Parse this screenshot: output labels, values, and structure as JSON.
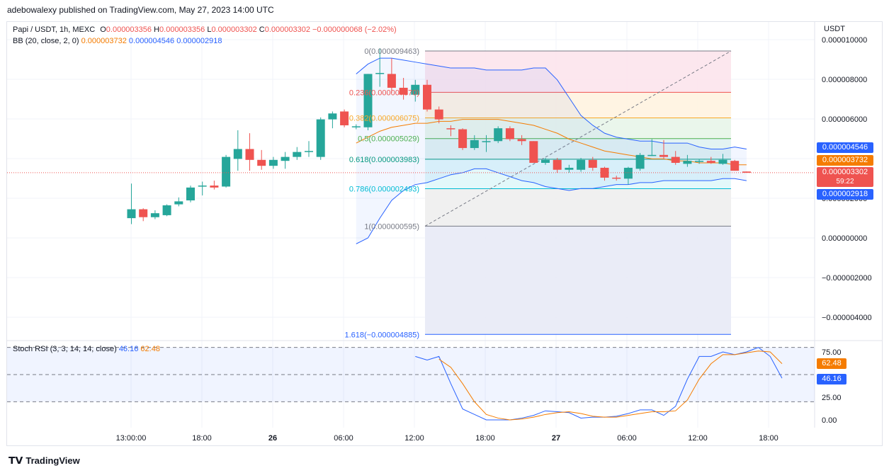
{
  "credit": "adebowalexy published on TradingView.com, May 27, 2023 14:00 UTC",
  "legend": {
    "symbol": "Papi / USDT, 1h, MEXC",
    "o_label": "O",
    "o": "0.000003356",
    "h_label": "H",
    "h": "0.000003356",
    "l_label": "L",
    "l": "0.000003302",
    "c_label": "C",
    "c": "0.000003302",
    "change": "−0.000000068 (−2.02%)",
    "bb_label": "BB (20, close, 2, 0)",
    "bb_basis": "0.000003732",
    "bb_upper": "0.000004546",
    "bb_lower": "0.000002918",
    "stoch_label": "Stoch RSI (3, 3, 14, 14, close)",
    "stoch_k": "46.16",
    "stoch_d": "62.48"
  },
  "price_tags": {
    "upper": "0.000004546",
    "basis": "0.000003732",
    "last": "0.000003302",
    "countdown": "59:22",
    "lower": "0.000002918",
    "stoch_d": "62.48",
    "stoch_k": "46.16"
  },
  "colors": {
    "up": "#26a69a",
    "down": "#ef5350",
    "bb_band": "#2962ff",
    "bb_basis": "#f57c00"
  },
  "footer": {
    "brand": "TradingView"
  },
  "chart_data": [
    {
      "type": "candlestick",
      "title": "Papi / USDT, 1h, MEXC",
      "currency_label": "USDT",
      "x_tick_labels": [
        "13:00:00",
        "18:00",
        "26",
        "06:00",
        "12:00",
        "18:00",
        "27",
        "06:00",
        "12:00",
        "18:00"
      ],
      "y_tick_labels": [
        "0.000010000",
        "0.000008000",
        "0.000006000",
        "0.000004000",
        "0.000002000",
        "0.000000000",
        "−0.000002000",
        "−0.000004000"
      ],
      "ylim": [
        -4.8e-06,
        1e-05
      ],
      "candles": [
        {
          "o": 1e-06,
          "h": 2.75e-06,
          "l": 7e-07,
          "c": 1.45e-06
        },
        {
          "o": 1.45e-06,
          "h": 1.5e-06,
          "l": 8.5e-07,
          "c": 1.05e-06
        },
        {
          "o": 1.05e-06,
          "h": 1.4e-06,
          "l": 9.5e-07,
          "c": 1.25e-06
        },
        {
          "o": 1.15e-06,
          "h": 1.7e-06,
          "l": 1.1e-06,
          "c": 1.65e-06
        },
        {
          "o": 1.7e-06,
          "h": 2.05e-06,
          "l": 1.6e-06,
          "c": 1.85e-06
        },
        {
          "o": 1.9e-06,
          "h": 2.65e-06,
          "l": 1.8e-06,
          "c": 2.55e-06
        },
        {
          "o": 2.6e-06,
          "h": 2.85e-06,
          "l": 2.15e-06,
          "c": 2.65e-06
        },
        {
          "o": 2.65e-06,
          "h": 2.9e-06,
          "l": 2.45e-06,
          "c": 2.55e-06
        },
        {
          "o": 2.6e-06,
          "h": 4.2e-06,
          "l": 2.55e-06,
          "c": 4.1e-06
        },
        {
          "o": 4e-06,
          "h": 5.45e-06,
          "l": 3.4e-06,
          "c": 4.5e-06
        },
        {
          "o": 4.5e-06,
          "h": 5.3e-06,
          "l": 3.4e-06,
          "c": 3.95e-06
        },
        {
          "o": 3.95e-06,
          "h": 4.45e-06,
          "l": 3.45e-06,
          "c": 3.65e-06
        },
        {
          "o": 3.65e-06,
          "h": 4.1e-06,
          "l": 3.5e-06,
          "c": 3.95e-06
        },
        {
          "o": 3.9e-06,
          "h": 4.35e-06,
          "l": 3.5e-06,
          "c": 4.1e-06
        },
        {
          "o": 4.1e-06,
          "h": 4.6e-06,
          "l": 3.95e-06,
          "c": 4.35e-06
        },
        {
          "o": 4.35e-06,
          "h": 4.9e-06,
          "l": 4.1e-06,
          "c": 4.4e-06
        },
        {
          "o": 4.1e-06,
          "h": 6.1e-06,
          "l": 3.95e-06,
          "c": 6e-06
        },
        {
          "o": 6e-06,
          "h": 6.4e-06,
          "l": 5.55e-06,
          "c": 6.3e-06
        },
        {
          "o": 6.4e-06,
          "h": 6.5e-06,
          "l": 5.6e-06,
          "c": 5.7e-06
        },
        {
          "o": 5.65e-06,
          "h": 5.75e-06,
          "l": 5.5e-06,
          "c": 5.65e-06
        },
        {
          "o": 5.6e-06,
          "h": 8.3e-06,
          "l": 5.45e-06,
          "c": 8.3e-06
        },
        {
          "o": 8.3e-06,
          "h": 9.6e-06,
          "l": 7.65e-06,
          "c": 8.35e-06
        },
        {
          "o": 8.3e-06,
          "h": 9.1e-06,
          "l": 7.35e-06,
          "c": 7.6e-06
        },
        {
          "o": 7.6e-06,
          "h": 8.1e-06,
          "l": 7e-06,
          "c": 7.25e-06
        },
        {
          "o": 7.25e-06,
          "h": 8e-06,
          "l": 6.9e-06,
          "c": 7.75e-06
        },
        {
          "o": 7.75e-06,
          "h": 8e-06,
          "l": 6.4e-06,
          "c": 6.5e-06
        },
        {
          "o": 6.5e-06,
          "h": 6.65e-06,
          "l": 5.8e-06,
          "c": 6e-06
        },
        {
          "o": 5.55e-06,
          "h": 5.7e-06,
          "l": 5.15e-06,
          "c": 5.5e-06
        },
        {
          "o": 5.5e-06,
          "h": 5.55e-06,
          "l": 4.45e-06,
          "c": 4.55e-06
        },
        {
          "o": 4.55e-06,
          "h": 5.2e-06,
          "l": 4.45e-06,
          "c": 4.95e-06
        },
        {
          "o": 4.9e-06,
          "h": 5.2e-06,
          "l": 4.35e-06,
          "c": 4.9e-06
        },
        {
          "o": 4.9e-06,
          "h": 5.65e-06,
          "l": 4.8e-06,
          "c": 5.55e-06
        },
        {
          "o": 5.55e-06,
          "h": 5.65e-06,
          "l": 4.9e-06,
          "c": 5e-06
        },
        {
          "o": 5e-06,
          "h": 5.2e-06,
          "l": 4.7e-06,
          "c": 4.9e-06
        },
        {
          "o": 4.9e-06,
          "h": 4.9e-06,
          "l": 3.8e-06,
          "c": 3.8e-06
        },
        {
          "o": 3.8e-06,
          "h": 4.05e-06,
          "l": 3.7e-06,
          "c": 3.95e-06
        },
        {
          "o": 3.95e-06,
          "h": 4.05e-06,
          "l": 3.3e-06,
          "c": 3.45e-06
        },
        {
          "o": 3.45e-06,
          "h": 3.7e-06,
          "l": 3.3e-06,
          "c": 3.55e-06
        },
        {
          "o": 3.45e-06,
          "h": 4.05e-06,
          "l": 3.35e-06,
          "c": 3.95e-06
        },
        {
          "o": 3.95e-06,
          "h": 4.1e-06,
          "l": 3.4e-06,
          "c": 3.55e-06
        },
        {
          "o": 3.55e-06,
          "h": 3.6e-06,
          "l": 2.9e-06,
          "c": 3.05e-06
        },
        {
          "o": 3.05e-06,
          "h": 3.15e-06,
          "l": 2.9e-06,
          "c": 3e-06
        },
        {
          "o": 3e-06,
          "h": 3.6e-06,
          "l": 2.7e-06,
          "c": 3.55e-06
        },
        {
          "o": 3.5e-06,
          "h": 4.3e-06,
          "l": 3.4e-06,
          "c": 4.2e-06
        },
        {
          "o": 4.2e-06,
          "h": 5e-06,
          "l": 4.15e-06,
          "c": 4.2e-06
        },
        {
          "o": 4.2e-06,
          "h": 4.95e-06,
          "l": 4e-06,
          "c": 4.1e-06
        },
        {
          "o": 4.1e-06,
          "h": 4.4e-06,
          "l": 3.7e-06,
          "c": 3.8e-06
        },
        {
          "o": 3.75e-06,
          "h": 4.2e-06,
          "l": 3.6e-06,
          "c": 3.9e-06
        },
        {
          "o": 3.85e-06,
          "h": 4e-06,
          "l": 3.75e-06,
          "c": 3.9e-06
        },
        {
          "o": 3.9e-06,
          "h": 4.1e-06,
          "l": 3.75e-06,
          "c": 3.8e-06
        },
        {
          "o": 3.75e-06,
          "h": 4.25e-06,
          "l": 3.7e-06,
          "c": 3.95e-06
        },
        {
          "o": 3.9e-06,
          "h": 3.95e-06,
          "l": 3.4e-06,
          "c": 3.4e-06
        },
        {
          "o": 3.36e-06,
          "h": 3.36e-06,
          "l": 3.3e-06,
          "c": 3.3e-06
        }
      ],
      "bollinger": {
        "x_start_index": 19,
        "upper": [
          8.3e-06,
          8.8e-06,
          9.1e-06,
          9.1e-06,
          9e-06,
          8.9e-06,
          8.8e-06,
          8.7e-06,
          8.6e-06,
          8.6e-06,
          8.6e-06,
          8.5e-06,
          8.5e-06,
          8.5e-06,
          8.5e-06,
          8.6e-06,
          8.6e-06,
          8e-06,
          7.1e-06,
          6.2e-06,
          5.7e-06,
          5.3e-06,
          5.1e-06,
          5e-06,
          4.9e-06,
          4.9e-06,
          4.8e-06,
          4.8e-06,
          4.8e-06,
          4.6e-06,
          4.5e-06,
          4.5e-06,
          4.6e-06,
          4.5e-06
        ],
        "basis": [
          4.8e-06,
          5.1e-06,
          5.4e-06,
          5.6e-06,
          5.7e-06,
          5.8e-06,
          5.8e-06,
          5.9e-06,
          5.9e-06,
          6e-06,
          6e-06,
          6e-06,
          6e-06,
          5.9e-06,
          5.8e-06,
          5.7e-06,
          5.5e-06,
          5.3e-06,
          5e-06,
          4.8e-06,
          4.6e-06,
          4.4e-06,
          4.3e-06,
          4.2e-06,
          4.1e-06,
          4e-06,
          4e-06,
          3.9e-06,
          3.9e-06,
          3.8e-06,
          3.8e-06,
          3.8e-06,
          3.7e-06,
          3.7e-06
        ],
        "lower": [
          -3e-07,
          0.0,
          1e-06,
          1.9e-06,
          2.4e-06,
          2.7e-06,
          2.8e-06,
          3e-06,
          3.2e-06,
          3.3e-06,
          3.5e-06,
          3.5e-06,
          3.3e-06,
          3.1e-06,
          2.9e-06,
          2.8e-06,
          2.6e-06,
          2.5e-06,
          2.4e-06,
          2.5e-06,
          2.5e-06,
          2.6e-06,
          2.7e-06,
          2.7e-06,
          2.8e-06,
          2.8e-06,
          2.9e-06,
          2.9e-06,
          2.9e-06,
          2.9e-06,
          2.9e-06,
          3e-06,
          3e-06,
          2.9e-06
        ]
      },
      "fibonacci": {
        "start_index": 26,
        "end_index": 51,
        "levels": [
          {
            "ratio": "0",
            "value": 9.463e-06,
            "label": "0(0.000009463)",
            "color": "#787b86",
            "fill": "#fce4ec"
          },
          {
            "ratio": "0.236",
            "value": 7.37e-06,
            "label": "0.236(0.000007370)",
            "color": "#ef5350",
            "fill": "#fff3e0"
          },
          {
            "ratio": "0.382",
            "value": 6.075e-06,
            "label": "0.382(0.000006075)",
            "color": "#f9a825",
            "fill": "#e8f5e9"
          },
          {
            "ratio": "0.5",
            "value": 5.029e-06,
            "label": "0.5(0.000005029)",
            "color": "#4caf50",
            "fill": "#e0f2f1"
          },
          {
            "ratio": "0.618",
            "value": 3.983e-06,
            "label": "0.618(0.000003983)",
            "color": "#089981",
            "fill": "#e0f7fa"
          },
          {
            "ratio": "0.786",
            "value": 2.493e-06,
            "label": "0.786(0.000002493)",
            "color": "#00bcd4",
            "fill": "#eeeeee"
          },
          {
            "ratio": "1",
            "value": 5.95e-07,
            "label": "1(0.000000595)",
            "color": "#787b86",
            "fill": "#e8eaf6"
          },
          {
            "ratio": "1.618",
            "value": -4.885e-06,
            "label": "1.618(−0.000004885)",
            "color": "#2962ff",
            "fill": null
          }
        ]
      }
    },
    {
      "type": "line",
      "title": "Stoch RSI (3, 3, 14, 14, close)",
      "y_tick_labels": [
        "75.00",
        "25.00",
        "0.00"
      ],
      "ylim": [
        0,
        100
      ],
      "bands": [
        80,
        50,
        20
      ],
      "x_start_index": 24,
      "series": [
        {
          "name": "K",
          "color": "#2962ff",
          "values": [
            70,
            66,
            70,
            40,
            12,
            6,
            0,
            0,
            0,
            2,
            5,
            10,
            9,
            8,
            2,
            3,
            3,
            4,
            7,
            11,
            11,
            5,
            15,
            45,
            70,
            70,
            75,
            72,
            75,
            80,
            70,
            46
          ]
        },
        {
          "name": "D",
          "color": "#f57c00",
          "values": [
            null,
            null,
            67,
            58,
            40,
            20,
            6,
            2,
            0,
            1,
            3,
            6,
            8,
            9,
            7,
            4,
            3,
            3,
            5,
            7,
            9,
            9,
            10,
            22,
            45,
            62,
            72,
            72,
            74,
            76,
            75,
            62
          ]
        }
      ]
    }
  ]
}
